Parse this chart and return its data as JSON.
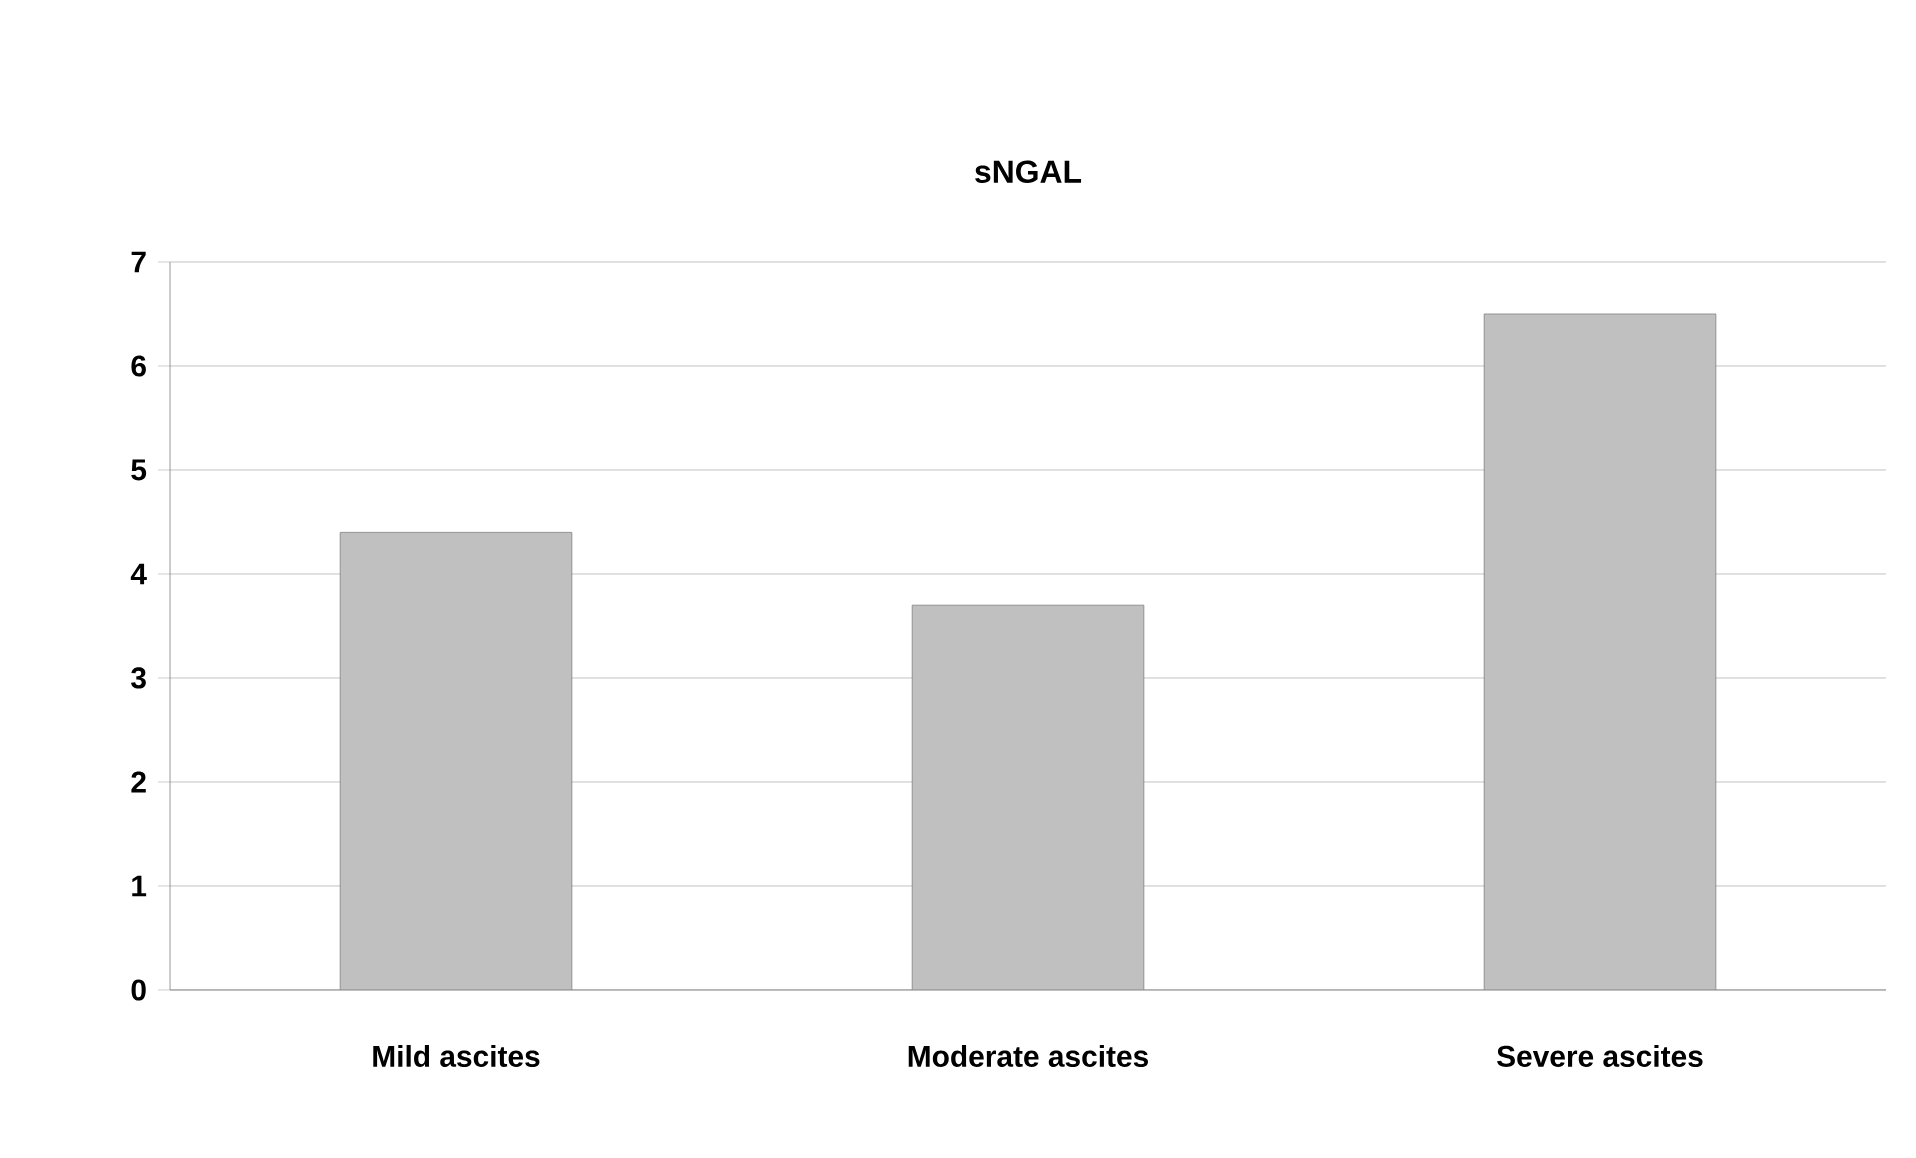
{
  "chart_data": {
    "type": "bar",
    "title": "sNGAL",
    "categories": [
      "Mild ascites",
      "Moderate ascites",
      "Severe ascites"
    ],
    "values": [
      4.4,
      3.7,
      6.5
    ],
    "color": "#c0c0c0",
    "ylim": [
      0,
      7
    ],
    "yticks": [
      0,
      1,
      2,
      3,
      4,
      5,
      6,
      7
    ],
    "grid": "y"
  }
}
